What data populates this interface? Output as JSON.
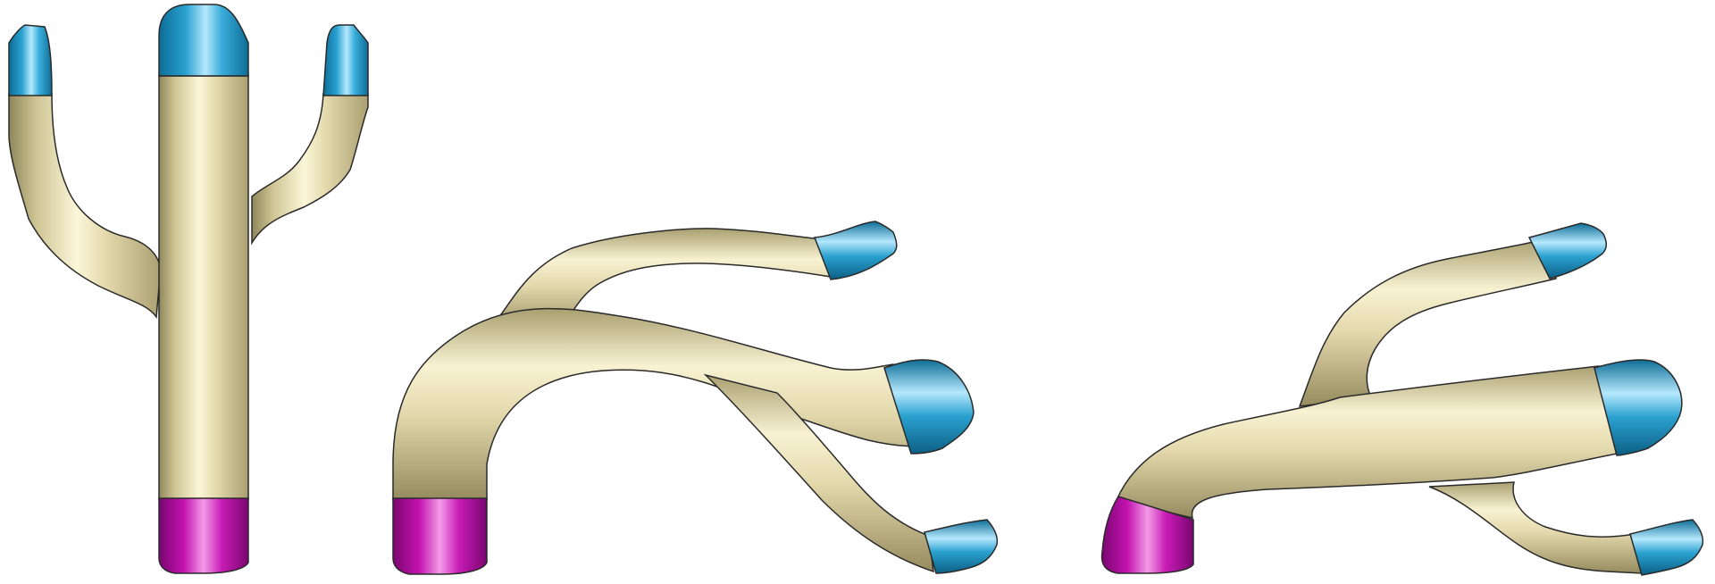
{
  "figure": {
    "background": "#ffffff",
    "colors": {
      "vessel_body": "#ddd3a6",
      "vessel_highlight": "#f6f0cc",
      "vessel_shadow": "#a59b6c",
      "outlet_cap": "#1f97c6",
      "outlet_highlight": "#a9e2fb",
      "inlet_cap": "#b80aa6",
      "inlet_highlight": "#f08ae0",
      "outline": "#2a2a2a"
    },
    "models": [
      {
        "name": "straight-trident-vessel",
        "outlets": 3,
        "inlets": 1
      },
      {
        "name": "arched-branching-vessel",
        "outlets": 3,
        "inlets": 1
      },
      {
        "name": "bent-branching-vessel",
        "outlets": 3,
        "inlets": 1
      }
    ]
  }
}
